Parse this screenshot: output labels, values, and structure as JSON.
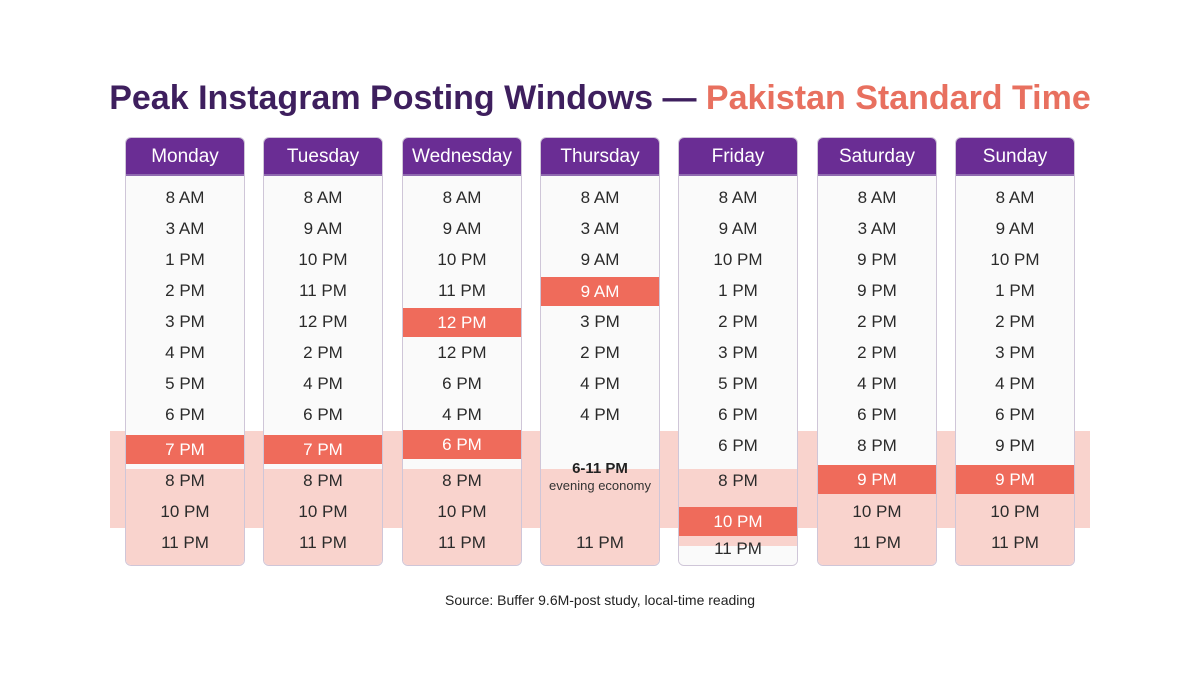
{
  "title": {
    "part1": "Peak Instagram Posting Windows —",
    "part2": "Pakistan Standard Time"
  },
  "colors": {
    "header": "#6a2d94",
    "highlight": "#ef6b5b",
    "band": "#f9d3cd",
    "title_primary": "#3e1f5e",
    "title_accent": "#e8705f"
  },
  "days": [
    {
      "name": "Monday",
      "slots": [
        "8 AM",
        "3 AM",
        "1 PM",
        "2 PM",
        "3 PM",
        "4 PM",
        "5 PM",
        "6 PM",
        "7 PM",
        "8 PM",
        "10 PM",
        "11 PM"
      ],
      "highlighted_slots": [
        "7 PM"
      ]
    },
    {
      "name": "Tuesday",
      "slots": [
        "8 AM",
        "9 AM",
        "10 PM",
        "11 PM",
        "12 PM",
        "2 PM",
        "4 PM",
        "6 PM",
        "7 PM",
        "8 PM",
        "10 PM",
        "11 PM"
      ],
      "highlighted_slots": [
        "7 PM"
      ]
    },
    {
      "name": "Wednesday",
      "slots": [
        "8 AM",
        "9 AM",
        "10 PM",
        "11 PM",
        "12 PM",
        "12 PM",
        "6 PM",
        "4 PM",
        "6 PM",
        "8 PM",
        "10 PM",
        "11 PM"
      ],
      "highlighted_slots": [
        "12 PM (5th)",
        "6 PM (9th)"
      ]
    },
    {
      "name": "Thursday",
      "slots": [
        "8 AM",
        "3 AM",
        "9 AM",
        "9 AM",
        "3 PM",
        "2 PM",
        "4 PM",
        "4 PM",
        "11 PM"
      ],
      "highlighted_slots": [
        "9 AM (4th)"
      ],
      "evening": {
        "time": "6-11 PM",
        "note": "evening economy"
      }
    },
    {
      "name": "Friday",
      "slots": [
        "8 AM",
        "9 AM",
        "10 PM",
        "1 PM",
        "2 PM",
        "3 PM",
        "5 PM",
        "6 PM",
        "6 PM",
        "8 PM",
        "10 PM",
        "11 PM"
      ],
      "highlighted_slots": [
        "10 PM"
      ]
    },
    {
      "name": "Saturday",
      "slots": [
        "8 AM",
        "3 AM",
        "9 PM",
        "9 PM",
        "2 PM",
        "2 PM",
        "4 PM",
        "6 PM",
        "8 PM",
        "9 PM",
        "10 PM",
        "11 PM"
      ],
      "highlighted_slots": [
        "9 PM (10th)"
      ]
    },
    {
      "name": "Sunday",
      "slots": [
        "8 AM",
        "9 AM",
        "10 PM",
        "1 PM",
        "2 PM",
        "3 PM",
        "4 PM",
        "6 PM",
        "9 PM",
        "9 PM",
        "10 PM",
        "11 PM"
      ],
      "highlighted_slots": [
        "9 PM (10th)"
      ]
    }
  ],
  "source": "Source: Buffer 9.6M-post study, local-time reading"
}
